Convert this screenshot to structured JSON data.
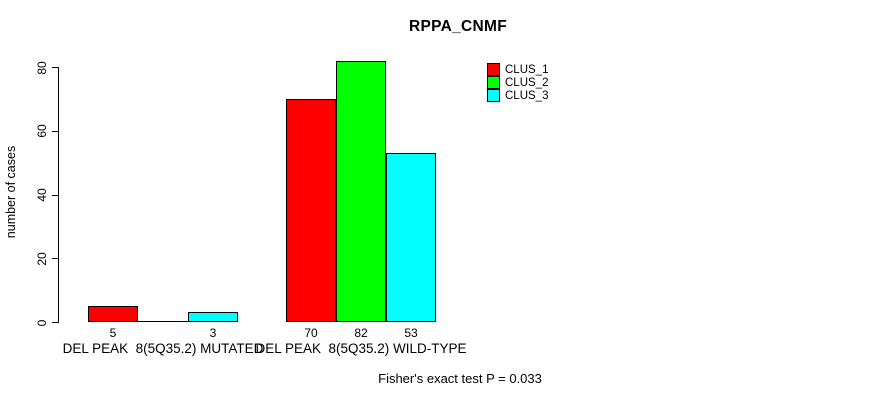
{
  "chart_data": {
    "type": "bar",
    "title": "RPPA_CNMF",
    "xlabel": "",
    "ylabel": "number of cases",
    "ylim": [
      0,
      80
    ],
    "yticks": [
      0,
      20,
      40,
      60,
      80
    ],
    "grid": false,
    "legend_position": "top-right",
    "categories": [
      "DEL PEAK  8(5Q35.2) MUTATED",
      "DEL PEAK  8(5Q35.2) WILD-TYPE"
    ],
    "series": [
      {
        "name": "CLUS_1",
        "color": "#ff0000",
        "values": [
          5,
          70
        ]
      },
      {
        "name": "CLUS_2",
        "color": "#00ff00",
        "values": [
          0,
          82
        ]
      },
      {
        "name": "CLUS_3",
        "color": "#00ffff",
        "values": [
          3,
          53
        ]
      }
    ],
    "bar_value_labels": [
      [
        "5",
        "",
        "3"
      ],
      [
        "70",
        "82",
        "53"
      ]
    ],
    "annotation": "Fisher's exact test P = 0.033"
  },
  "colors": {
    "axis": "#000000",
    "text": "#000000",
    "background": "#ffffff"
  }
}
